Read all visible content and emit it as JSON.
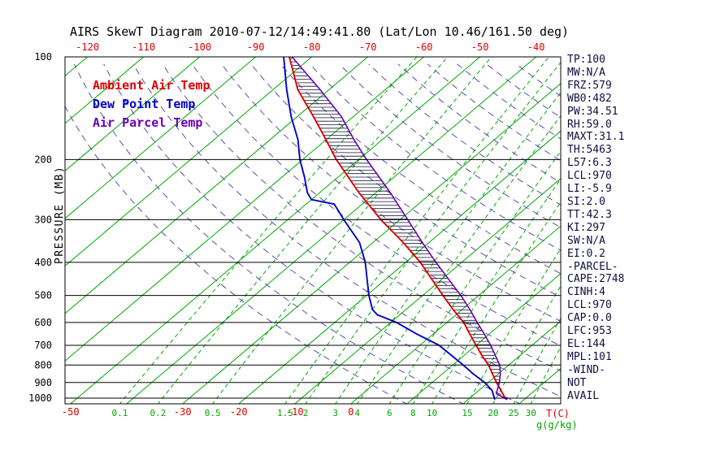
{
  "title": "AIRS SkewT Diagram 2010-07-12/14:49:41.80 (Lat/Lon 10.46/161.50 deg)",
  "legend": {
    "ambient": {
      "label": "Ambient Air Temp",
      "color": "#dd0000"
    },
    "dewpoint": {
      "label": "Dew Point Temp",
      "color": "#0000cc"
    },
    "parcel": {
      "label": "Air Parcel Temp",
      "color": "#6a00b8"
    }
  },
  "axes": {
    "y_label": "PRESSURE (MB)",
    "pressure_ticks": [
      100,
      200,
      300,
      400,
      500,
      600,
      700,
      800,
      900,
      1000
    ],
    "top_temp_ticks": [
      -120,
      -110,
      -100,
      -90,
      -80,
      -70,
      -60,
      -50,
      -40
    ],
    "bottom_temp_ticks": [
      -50,
      -30,
      -20,
      -10,
      0
    ],
    "bottom_temp_unit": "T(C)",
    "mixing_ratio_ticks": [
      0.1,
      0.2,
      0.5,
      1.5,
      2,
      3,
      4,
      6,
      8,
      10,
      15,
      20,
      25,
      30
    ],
    "mixing_ratio_unit": "g(g/kg)"
  },
  "stats_panel": {
    "lines": [
      "TP:100",
      "MW:N/A",
      "FRZ:579",
      "WB0:482",
      "PW:34.51",
      "RH:59.0",
      "MAXT:31.1",
      "TH:5463",
      "L57:6.3",
      "LCL:970",
      "LI:-5.9",
      "SI:2.0",
      "TT:42.3",
      "KI:297",
      "SW:N/A",
      "EI:0.2",
      "-PARCEL-",
      "CAPE:2748",
      "CINH:4",
      "LCL:970",
      "CAP:0.0",
      "LFC:953",
      "EL:144",
      "MPL:101",
      "-WIND-",
      "NOT",
      "AVAIL"
    ]
  },
  "colors": {
    "red": "#dd0000",
    "green": "#00a800",
    "blue": "#0000cc",
    "violet": "#6a00b8",
    "adiabat_dash": "#5b4fa6",
    "hatch": "#15153a",
    "stats_text": "#101040",
    "axis_black": "#000000"
  },
  "chart_data": {
    "type": "line",
    "title": "AIRS SkewT Diagram 2010-07-12/14:49:41.80 (Lat/Lon 10.46/161.50 deg)",
    "x_axis": {
      "label": "T(C)",
      "style": "skewed isotherms (skew-T)",
      "top_ticks_c": [
        -120,
        -110,
        -100,
        -90,
        -80,
        -70,
        -60,
        -50,
        -40
      ],
      "bottom_ticks_c": [
        -50,
        -30,
        -20,
        -10,
        0
      ]
    },
    "y_axis": {
      "label": "PRESSURE (MB)",
      "scale": "log",
      "range_mb": [
        100,
        1040
      ],
      "ticks": [
        100,
        200,
        300,
        400,
        500,
        600,
        700,
        800,
        900,
        1000
      ]
    },
    "units": {
      "pressure": "mb",
      "temperature": "C",
      "mixing_ratio": "g/kg"
    },
    "series": [
      {
        "id": "ambient-air-temp",
        "name": "Ambient Air Temp",
        "color": "#dd0000",
        "points_mb_c": [
          [
            1010,
            27.0
          ],
          [
            1000,
            26.3
          ],
          [
            950,
            24.0
          ],
          [
            900,
            21.5
          ],
          [
            850,
            19.0
          ],
          [
            800,
            16.4
          ],
          [
            750,
            13.2
          ],
          [
            700,
            10.0
          ],
          [
            650,
            6.6
          ],
          [
            600,
            3.0
          ],
          [
            550,
            -1.6
          ],
          [
            500,
            -6.4
          ],
          [
            450,
            -11.6
          ],
          [
            400,
            -17.4
          ],
          [
            350,
            -24.6
          ],
          [
            300,
            -33.4
          ],
          [
            250,
            -43.0
          ],
          [
            200,
            -54.0
          ],
          [
            175,
            -60.0
          ],
          [
            150,
            -67.0
          ],
          [
            125,
            -75.5
          ],
          [
            100,
            -84.0
          ]
        ]
      },
      {
        "id": "dew-point-temp",
        "name": "Dew Point Temp",
        "color": "#0000cc",
        "points_mb_c": [
          [
            1010,
            24.8
          ],
          [
            1000,
            24.4
          ],
          [
            950,
            22.4
          ],
          [
            900,
            19.4
          ],
          [
            850,
            15.6
          ],
          [
            800,
            11.9
          ],
          [
            750,
            7.8
          ],
          [
            700,
            3.4
          ],
          [
            650,
            -2.8
          ],
          [
            600,
            -9.0
          ],
          [
            570,
            -14.0
          ],
          [
            550,
            -16.0
          ],
          [
            500,
            -19.6
          ],
          [
            450,
            -23.2
          ],
          [
            400,
            -27.2
          ],
          [
            350,
            -32.4
          ],
          [
            300,
            -40.0
          ],
          [
            270,
            -45.0
          ],
          [
            262,
            -50.0
          ],
          [
            250,
            -52.2
          ],
          [
            225,
            -56.0
          ],
          [
            200,
            -60.5
          ],
          [
            175,
            -65.0
          ],
          [
            150,
            -71.0
          ],
          [
            125,
            -77.5
          ],
          [
            100,
            -85.0
          ]
        ]
      },
      {
        "id": "air-parcel-temp",
        "name": "Air Parcel Temp",
        "color": "#6a00b8",
        "points_mb_c": [
          [
            1010,
            27.0
          ],
          [
            1000,
            26.2
          ],
          [
            970,
            23.8
          ],
          [
            950,
            23.3
          ],
          [
            900,
            22.0
          ],
          [
            850,
            20.4
          ],
          [
            800,
            18.4
          ],
          [
            750,
            15.6
          ],
          [
            700,
            12.6
          ],
          [
            650,
            9.2
          ],
          [
            600,
            5.4
          ],
          [
            550,
            1.4
          ],
          [
            500,
            -3.2
          ],
          [
            450,
            -8.6
          ],
          [
            400,
            -14.6
          ],
          [
            350,
            -21.2
          ],
          [
            300,
            -28.6
          ],
          [
            250,
            -37.4
          ],
          [
            200,
            -48.6
          ],
          [
            175,
            -55.0
          ],
          [
            150,
            -62.0
          ],
          [
            125,
            -71.5
          ],
          [
            100,
            -83.5
          ]
        ]
      }
    ],
    "background": {
      "isotherms_c": {
        "min": -120,
        "max": 40,
        "step": 10
      },
      "dry_adiabats_k": {
        "min": 280,
        "max": 440,
        "step": 10
      },
      "mixing_ratio_lines_gkg": [
        0.1,
        0.2,
        0.5,
        1.5,
        2,
        3,
        4,
        6,
        8,
        10,
        15,
        20,
        25,
        30
      ],
      "pressure_lines_mb": [
        100,
        200,
        300,
        400,
        500,
        600,
        700,
        800,
        900,
        1000
      ]
    },
    "cape_hatch": {
      "from_mb": 953,
      "to_mb": 101
    },
    "annotations": {
      "lcl_mb": 970,
      "lfc_mb": 953,
      "el_mb": 144,
      "mpl_mb": 101,
      "cape_j_kg": 2748,
      "cinh_j_kg": 4
    }
  }
}
